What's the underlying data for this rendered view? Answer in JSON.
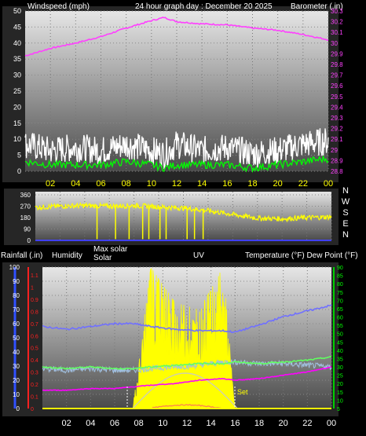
{
  "colors": {
    "frame": "#2a2a2a",
    "plot_top": "#e6e6e6",
    "plot_bottom": "#5a5a5a",
    "axis_text": "#ffffff",
    "hour_text": "#ffff00",
    "barometer": "#ff40ff",
    "wind_max": "#ffffff",
    "wind_avg": "#00ff00",
    "direction": "#ffff00",
    "dir_axis": "#4040ff",
    "rain": "#ff2020",
    "humidity": "#7070ff",
    "solar_max": "#ffff00",
    "solar": "#ffff00",
    "uv": "#ff7f50",
    "temp": "#ff00ff",
    "dew": "#60ff60",
    "rain_axis": "#3050ff",
    "temp_axis": "#00d000",
    "sun_curve": "#c8c8c8",
    "night_mark": "#ffffff"
  },
  "panel1": {
    "label_wind": "Windspeed (mph)",
    "label_title": "24 hour graph day : December 20 2025",
    "label_baro": "Barometer (.in)",
    "wind_ticks": [
      "50",
      "45",
      "40",
      "35",
      "30",
      "25",
      "20",
      "15",
      "10",
      "5",
      "0"
    ],
    "baro_ticks": [
      "30.3",
      "30.2",
      "30.1",
      "30",
      "29.9",
      "29.8",
      "29.7",
      "29.6",
      "29.5",
      "29.4",
      "29.3",
      "29.2",
      "29.1",
      "29",
      "28.9",
      "28.8"
    ]
  },
  "panel2": {
    "dir_ticks": [
      "360",
      "270",
      "180",
      "90",
      "0"
    ],
    "compass": [
      "N",
      "W",
      "S",
      "E",
      "N"
    ]
  },
  "panel3": {
    "label_rain": "Rainfall (.in)",
    "label_hum": "Humidity",
    "label_maxsolar": "Max solar",
    "label_solar": "Solar",
    "label_uv": "UV",
    "label_temp": "Temperature (°F) Dew Point (°F)",
    "hum_ticks": [
      "100",
      "90",
      "80",
      "70",
      "60",
      "50",
      "40",
      "30",
      "20",
      "10",
      "0"
    ],
    "rain_ticks": [
      "1.1",
      "1",
      "0.9",
      "0.8",
      "0.7",
      "0.6",
      "0.5",
      "0.4",
      "0.3",
      "0.2",
      "0.1",
      "0"
    ],
    "temp_ticks": [
      "90",
      "85",
      "80",
      "75",
      "70",
      "65",
      "60",
      "55",
      "50",
      "45",
      "40",
      "35",
      "30",
      "25",
      "20",
      "15",
      "10",
      "5"
    ],
    "set_label": "Set"
  },
  "hours": [
    "02",
    "04",
    "06",
    "08",
    "10",
    "12",
    "14",
    "16",
    "18",
    "20",
    "22",
    "00"
  ],
  "chart_data": [
    {
      "type": "line",
      "title": "24 hour graph day : December 20 2025",
      "xlabel": "",
      "ylabel": "Windspeed (mph)",
      "ylabel_right": "Barometer (.in)",
      "x": [
        0,
        2,
        4,
        6,
        8,
        10,
        11,
        12,
        14,
        16,
        18,
        20,
        22,
        24
      ],
      "x_ticks": [
        "02",
        "04",
        "06",
        "08",
        "10",
        "12",
        "14",
        "16",
        "18",
        "20",
        "22",
        "00"
      ],
      "ylim": [
        0,
        50
      ],
      "ylim_right": [
        28.8,
        30.3
      ],
      "series": [
        {
          "axis": "right",
          "values": [
            29.88,
            29.95,
            30.0,
            30.06,
            30.14,
            30.21,
            30.24,
            30.2,
            30.18,
            30.17,
            30.14,
            30.12,
            30.08,
            30.03
          ]
        },
        {
          "axis": "left",
          "values": [
            8,
            6,
            7,
            6,
            8,
            6,
            5,
            8,
            6,
            7,
            5,
            6,
            8,
            9
          ]
        },
        {
          "axis": "left",
          "values": [
            3,
            2,
            2,
            2,
            3,
            2,
            1,
            2,
            2,
            2,
            1,
            2,
            3,
            4
          ]
        }
      ]
    },
    {
      "type": "line",
      "ylabel": "",
      "ylim": [
        0,
        360
      ],
      "x": [
        0,
        2,
        4,
        6,
        8,
        10,
        12,
        14,
        16,
        18,
        20,
        22,
        24
      ],
      "y_ticks": [
        "360",
        "270",
        "180",
        "90",
        "0"
      ],
      "series": [
        {
          "values": [
            260,
            270,
            275,
            270,
            275,
            265,
            255,
            235,
            205,
            175,
            170,
            180,
            185
          ]
        }
      ]
    },
    {
      "type": "line",
      "ylim": [
        0,
        100
      ],
      "ylim_right": [
        5,
        90
      ],
      "x": [
        0,
        2,
        4,
        6,
        7.5,
        9,
        11,
        13,
        15,
        16,
        18,
        20,
        22,
        24
      ],
      "x_ticks": [
        "02",
        "04",
        "06",
        "08",
        "10",
        "12",
        "14",
        "16",
        "18",
        "20",
        "22",
        "00"
      ],
      "series": [
        {
          "axis": "left",
          "values": [
            58,
            56,
            58,
            60,
            60,
            58,
            56,
            55,
            55,
            54,
            59,
            65,
            69,
            73
          ]
        },
        {
          "axis": "right",
          "values": [
            30,
            29,
            30,
            29,
            29,
            30,
            31,
            32,
            32,
            33,
            32,
            33,
            34,
            36
          ]
        },
        {
          "axis": "right",
          "values": [
            29,
            28,
            29,
            28,
            28,
            29,
            30,
            31,
            33,
            33,
            32,
            32,
            31,
            30
          ]
        },
        {
          "axis": "right",
          "values": [
            16,
            16,
            17,
            17,
            18,
            19,
            20,
            22,
            23,
            22,
            23,
            25,
            27,
            30
          ]
        },
        {
          "axis": "left",
          "values": [
            0,
            0,
            0,
            0,
            0,
            4,
            10,
            15,
            10,
            0,
            0,
            0,
            0,
            0
          ]
        },
        {
          "axis": "left",
          "values": [
            0,
            0,
            0,
            0,
            0,
            100,
            75,
            70,
            100,
            0,
            0,
            0,
            0,
            0
          ]
        },
        {
          "axis": "left",
          "values": [
            0,
            0,
            0,
            0,
            0,
            1,
            1,
            1,
            1,
            0,
            0,
            0,
            0,
            0
          ]
        },
        {
          "axis": "left",
          "values": [
            0,
            0,
            0,
            0,
            0,
            0,
            0,
            0,
            0,
            0,
            0,
            0,
            0,
            0
          ]
        }
      ]
    }
  ]
}
